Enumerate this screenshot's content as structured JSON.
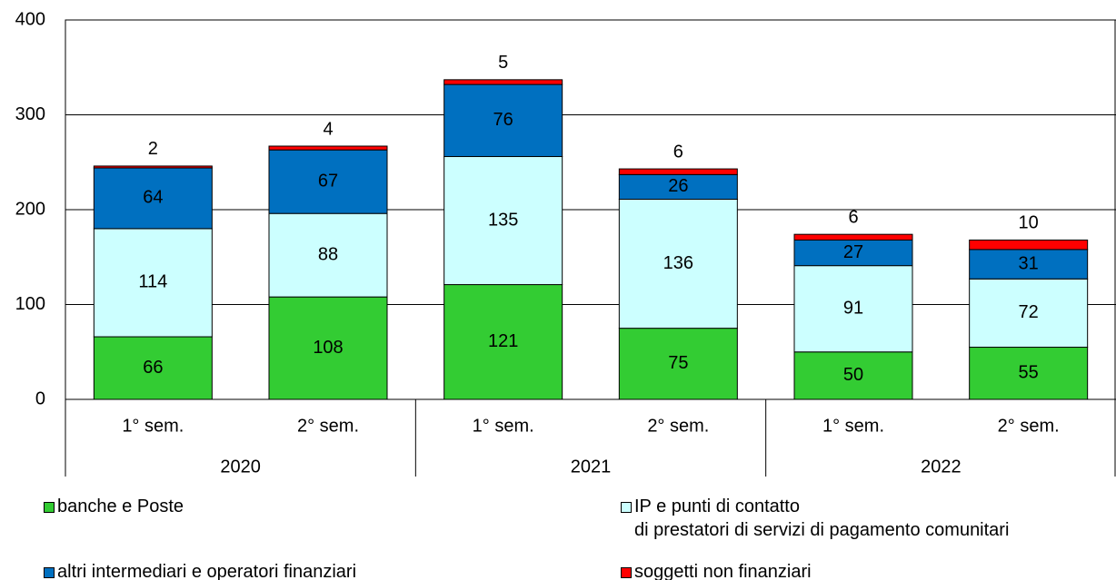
{
  "chart_data": {
    "type": "stacked_bar",
    "categories": [
      "1° sem.",
      "2° sem.",
      "1° sem.",
      "2° sem.",
      "1° sem.",
      "2° sem."
    ],
    "groups": [
      "2020",
      "2021",
      "2022"
    ],
    "series": [
      {
        "name": "banche e Poste",
        "color": "#33cc33",
        "values": [
          66,
          108,
          121,
          75,
          50,
          55
        ]
      },
      {
        "name": "IP e punti di contatto\ndi prestatori di servizi di pagamento comunitari",
        "color": "#ccffff",
        "values": [
          114,
          88,
          135,
          136,
          91,
          72
        ]
      },
      {
        "name": "altri intermediari e operatori finanziari",
        "color": "#0070c0",
        "values": [
          64,
          67,
          76,
          26,
          27,
          31
        ]
      },
      {
        "name": "soggetti non finanziari",
        "color": "#ff0000",
        "values": [
          2,
          4,
          5,
          6,
          6,
          10
        ]
      }
    ],
    "ylim": [
      0,
      400
    ],
    "yticks": [
      0,
      100,
      200,
      300,
      400
    ],
    "grid": true
  }
}
